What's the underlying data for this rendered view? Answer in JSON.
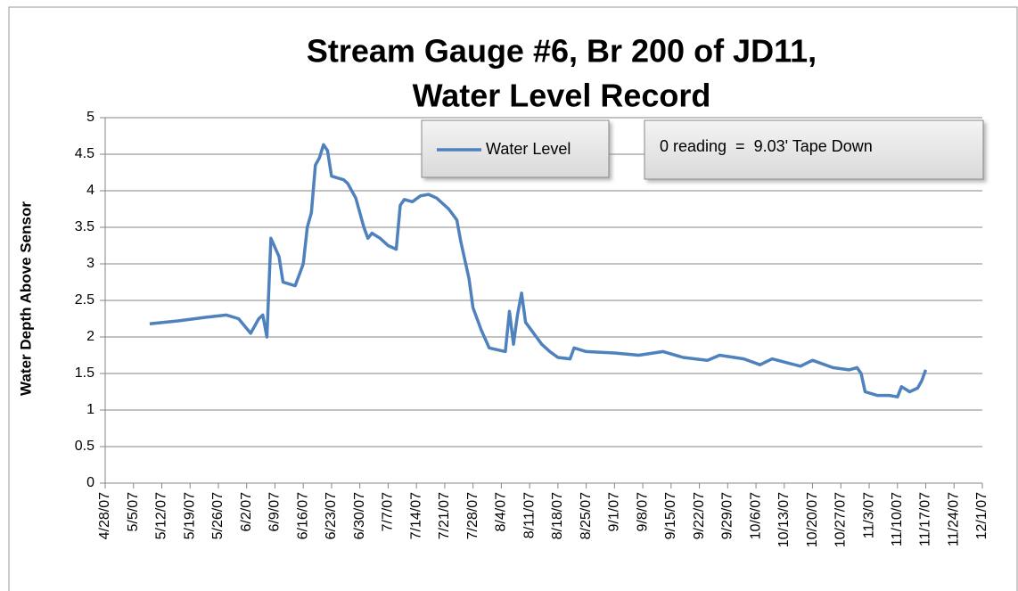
{
  "chart_data": {
    "type": "line",
    "title": [
      "Stream Gauge #6, Br 200 of JD11,",
      "Water Level Record"
    ],
    "y_label": "Water Depth Above Sensor",
    "annotation": "0 reading  =  9.03' Tape Down",
    "legend": "top",
    "grid": true,
    "x": [
      "2007-05-09",
      "2007-05-16",
      "2007-05-23",
      "2007-05-28",
      "2007-05-31",
      "2007-06-03",
      "2007-06-05",
      "2007-06-06",
      "2007-06-07",
      "2007-06-08",
      "2007-06-10",
      "2007-06-11",
      "2007-06-14",
      "2007-06-15",
      "2007-06-16",
      "2007-06-17",
      "2007-06-18",
      "2007-06-19",
      "2007-06-20",
      "2007-06-21",
      "2007-06-22",
      "2007-06-23",
      "2007-06-26",
      "2007-06-27",
      "2007-06-29",
      "2007-07-01",
      "2007-07-02",
      "2007-07-03",
      "2007-07-05",
      "2007-07-07",
      "2007-07-09",
      "2007-07-10",
      "2007-07-11",
      "2007-07-13",
      "2007-07-15",
      "2007-07-17",
      "2007-07-19",
      "2007-07-22",
      "2007-07-24",
      "2007-07-25",
      "2007-07-27",
      "2007-07-28",
      "2007-07-30",
      "2007-08-01",
      "2007-08-05",
      "2007-08-06",
      "2007-08-07",
      "2007-08-08",
      "2007-08-09",
      "2007-08-10",
      "2007-08-12",
      "2007-08-14",
      "2007-08-16",
      "2007-08-18",
      "2007-08-21",
      "2007-08-22",
      "2007-08-25",
      "2007-09-01",
      "2007-09-07",
      "2007-09-13",
      "2007-09-18",
      "2007-09-24",
      "2007-09-27",
      "2007-10-03",
      "2007-10-07",
      "2007-10-10",
      "2007-10-17",
      "2007-10-20",
      "2007-10-25",
      "2007-10-29",
      "2007-10-31",
      "2007-11-01",
      "2007-11-02",
      "2007-11-05",
      "2007-11-08",
      "2007-11-10",
      "2007-11-11",
      "2007-11-13",
      "2007-11-15",
      "2007-11-16",
      "2007-11-17"
    ],
    "series": [
      {
        "name": "Water Level",
        "color": "#4f81bd",
        "values": [
          2.18,
          2.22,
          2.27,
          2.3,
          2.25,
          2.05,
          2.25,
          2.3,
          2.0,
          3.35,
          3.1,
          2.75,
          2.7,
          2.85,
          3.0,
          3.5,
          3.7,
          4.35,
          4.45,
          4.63,
          4.55,
          4.2,
          4.15,
          4.1,
          3.9,
          3.5,
          3.35,
          3.42,
          3.35,
          3.25,
          3.2,
          3.8,
          3.88,
          3.85,
          3.93,
          3.95,
          3.9,
          3.75,
          3.6,
          3.3,
          2.8,
          2.4,
          2.1,
          1.85,
          1.8,
          2.35,
          1.9,
          2.3,
          2.6,
          2.2,
          2.05,
          1.9,
          1.8,
          1.72,
          1.7,
          1.85,
          1.8,
          1.78,
          1.75,
          1.8,
          1.72,
          1.68,
          1.75,
          1.7,
          1.62,
          1.7,
          1.6,
          1.68,
          1.58,
          1.55,
          1.58,
          1.5,
          1.25,
          1.2,
          1.2,
          1.18,
          1.32,
          1.25,
          1.3,
          1.4,
          1.55
        ]
      }
    ],
    "xlim": [
      "2007-04-28",
      "2007-12-01"
    ],
    "xticks": [
      {
        "value": "2007-04-28",
        "label": "4/28/07"
      },
      {
        "value": "2007-05-05",
        "label": "5/5/07"
      },
      {
        "value": "2007-05-12",
        "label": "5/12/07"
      },
      {
        "value": "2007-05-19",
        "label": "5/19/07"
      },
      {
        "value": "2007-05-26",
        "label": "5/26/07"
      },
      {
        "value": "2007-06-02",
        "label": "6/2/07"
      },
      {
        "value": "2007-06-09",
        "label": "6/9/07"
      },
      {
        "value": "2007-06-16",
        "label": "6/16/07"
      },
      {
        "value": "2007-06-23",
        "label": "6/23/07"
      },
      {
        "value": "2007-06-30",
        "label": "6/30/07"
      },
      {
        "value": "2007-07-07",
        "label": "7/7/07"
      },
      {
        "value": "2007-07-14",
        "label": "7/14/07"
      },
      {
        "value": "2007-07-21",
        "label": "7/21/07"
      },
      {
        "value": "2007-07-28",
        "label": "7/28/07"
      },
      {
        "value": "2007-08-04",
        "label": "8/4/07"
      },
      {
        "value": "2007-08-11",
        "label": "8/11/07"
      },
      {
        "value": "2007-08-18",
        "label": "8/18/07"
      },
      {
        "value": "2007-08-25",
        "label": "8/25/07"
      },
      {
        "value": "2007-09-01",
        "label": "9/1/07"
      },
      {
        "value": "2007-09-08",
        "label": "9/8/07"
      },
      {
        "value": "2007-09-15",
        "label": "9/15/07"
      },
      {
        "value": "2007-09-22",
        "label": "9/22/07"
      },
      {
        "value": "2007-09-29",
        "label": "9/29/07"
      },
      {
        "value": "2007-10-06",
        "label": "10/6/07"
      },
      {
        "value": "2007-10-13",
        "label": "10/13/07"
      },
      {
        "value": "2007-10-20",
        "label": "10/20/07"
      },
      {
        "value": "2007-10-27",
        "label": "10/27/07"
      },
      {
        "value": "2007-11-03",
        "label": "11/3/07"
      },
      {
        "value": "2007-11-10",
        "label": "11/10/07"
      },
      {
        "value": "2007-11-17",
        "label": "11/17/07"
      },
      {
        "value": "2007-11-24",
        "label": "11/24/07"
      },
      {
        "value": "2007-12-01",
        "label": "12/1/07"
      }
    ],
    "ylim": [
      0,
      5
    ],
    "yticks": [
      0,
      0.5,
      1,
      1.5,
      2,
      2.5,
      3,
      3.5,
      4,
      4.5,
      5
    ]
  }
}
